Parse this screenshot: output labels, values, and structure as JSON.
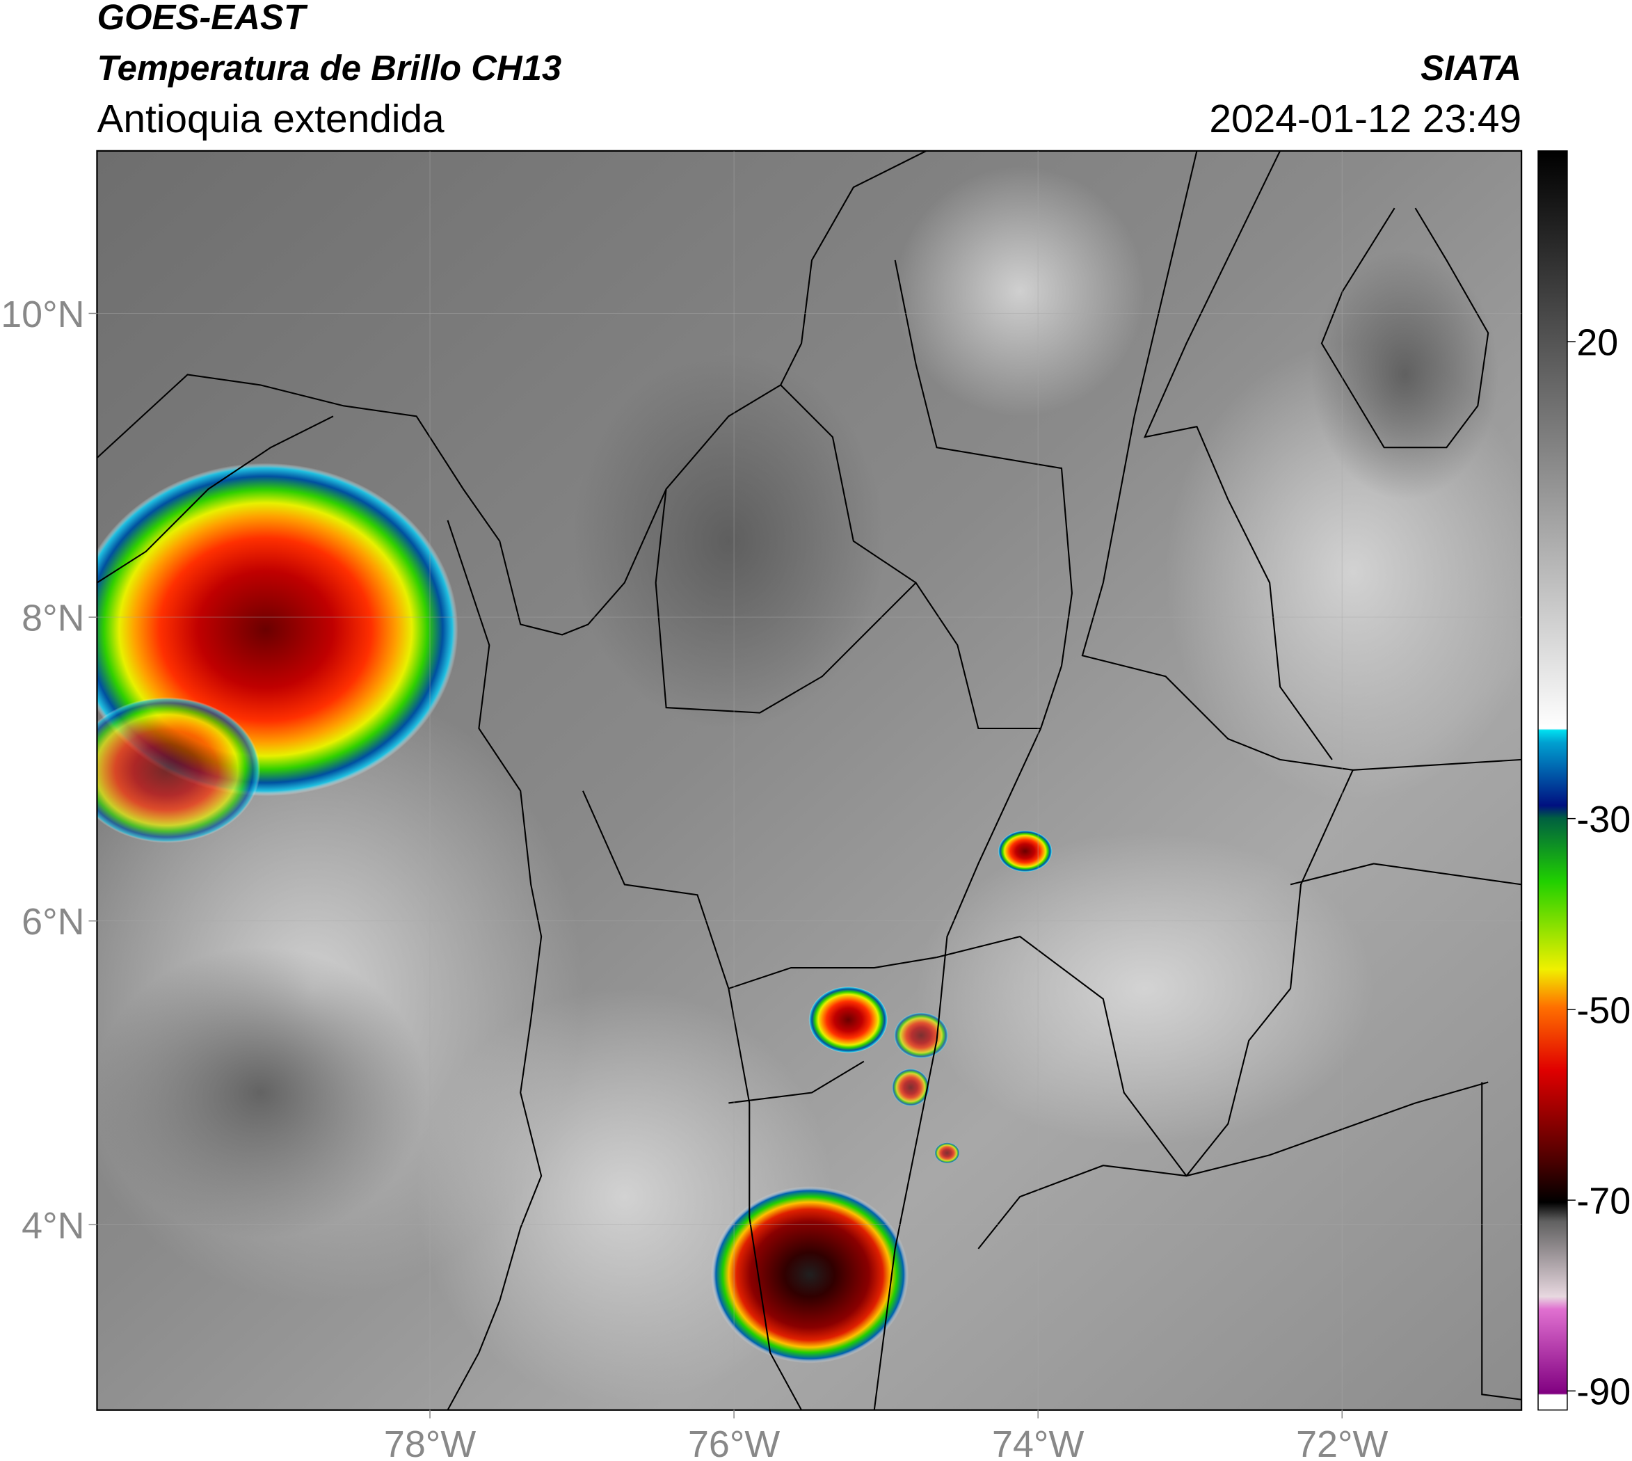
{
  "header": {
    "title_line1": "GOES-EAST",
    "title_line2": "Temperatura de Brillo CH13",
    "subtitle": "Antioquia extendida",
    "organization": "SIATA",
    "datetime": "2024-01-12 23:49"
  },
  "map": {
    "xlim": [
      -80.19,
      -70.82
    ],
    "ylim": [
      2.78,
      11.07
    ],
    "xticks": [
      {
        "value": -78,
        "label": "78°W"
      },
      {
        "value": -76,
        "label": "76°W"
      },
      {
        "value": -74,
        "label": "74°W"
      },
      {
        "value": -72,
        "label": "72°W"
      }
    ],
    "yticks": [
      {
        "value": 10,
        "label": "10°N"
      },
      {
        "value": 8,
        "label": "8°N"
      },
      {
        "value": 6,
        "label": "6°N"
      },
      {
        "value": 4,
        "label": "4°N"
      }
    ],
    "grid": true
  },
  "colorbar": {
    "lim": [
      -92,
      40
    ],
    "ticks": [
      20,
      -30,
      -50,
      -70,
      -90
    ]
  }
}
